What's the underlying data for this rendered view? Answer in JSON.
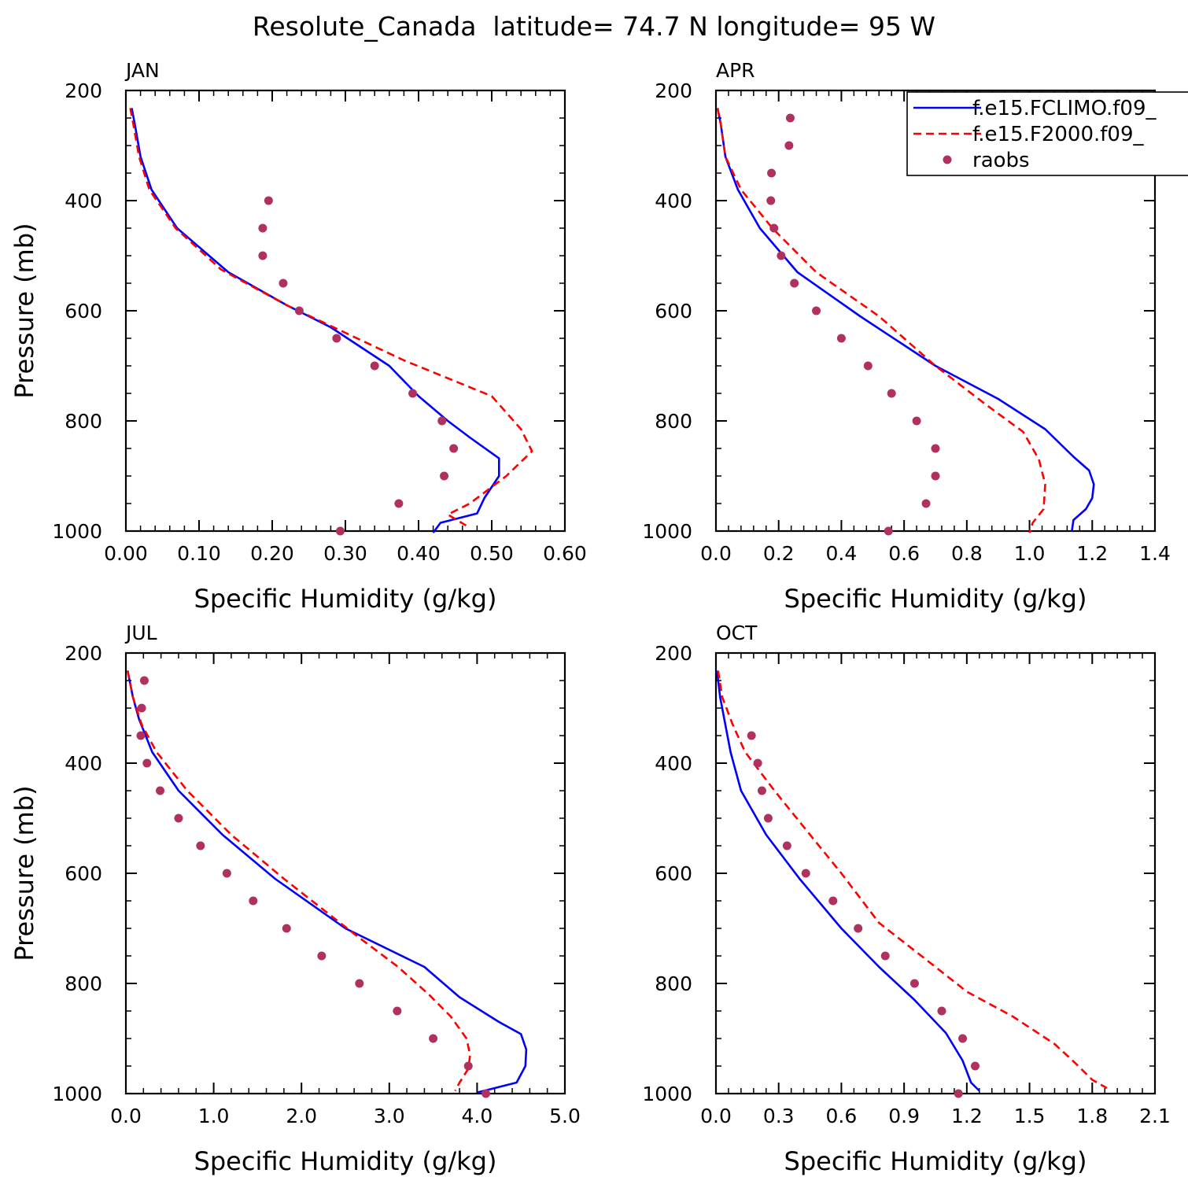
{
  "title": "Resolute_Canada  latitude= 74.7 N longitude= 95 W",
  "legend": {
    "placement": "top-right of APR panel",
    "entries": [
      {
        "label": "f.e15.FCLIMO.f09_",
        "color": "#0000ff",
        "style": "solid"
      },
      {
        "label": "f.e15.F2000.f09_",
        "color": "#ff0000",
        "style": "dashed"
      },
      {
        "label": "raobs",
        "color": "#b03060",
        "style": "dot"
      }
    ]
  },
  "chart_data": [
    {
      "type": "line",
      "panel_label": "JAN",
      "xlabel": "Specific Humidity (g/kg)",
      "ylabel": "Pressure (mb)",
      "xlim": [
        0,
        0.6
      ],
      "ylim": [
        200,
        1000
      ],
      "y_inverted": true,
      "xticks": [
        "0.00",
        "0.10",
        "0.20",
        "0.30",
        "0.40",
        "0.50",
        "0.60"
      ],
      "xtick_values": [
        0,
        0.1,
        0.2,
        0.3,
        0.4,
        0.5,
        0.6
      ],
      "yticks": [
        "200",
        "400",
        "600",
        "800",
        "1000"
      ],
      "ytick_values": [
        200,
        400,
        600,
        800,
        1000
      ],
      "series": [
        {
          "name": "f.e15.FCLIMO.f09_",
          "color": "#0000ff",
          "style": "solid",
          "points": [
            [
              0.008,
              232
            ],
            [
              0.012,
              260
            ],
            [
              0.02,
              320
            ],
            [
              0.035,
              380
            ],
            [
              0.07,
              450
            ],
            [
              0.14,
              530
            ],
            [
              0.22,
              590
            ],
            [
              0.28,
              630
            ],
            [
              0.36,
              700
            ],
            [
              0.4,
              755
            ],
            [
              0.44,
              800
            ],
            [
              0.47,
              830
            ],
            [
              0.51,
              868
            ],
            [
              0.51,
              900
            ],
            [
              0.49,
              940
            ],
            [
              0.48,
              968
            ],
            [
              0.43,
              985
            ],
            [
              0.42,
              1003
            ]
          ]
        },
        {
          "name": "f.e15.F2000.f09_",
          "color": "#ff0000",
          "style": "dashed",
          "points": [
            [
              0.006,
              232
            ],
            [
              0.01,
              260
            ],
            [
              0.018,
              320
            ],
            [
              0.032,
              380
            ],
            [
              0.068,
              450
            ],
            [
              0.13,
              525
            ],
            [
              0.22,
              590
            ],
            [
              0.3,
              640
            ],
            [
              0.38,
              690
            ],
            [
              0.5,
              755
            ],
            [
              0.54,
              815
            ],
            [
              0.555,
              855
            ],
            [
              0.52,
              900
            ],
            [
              0.47,
              950
            ],
            [
              0.44,
              970
            ],
            [
              0.465,
              990
            ]
          ]
        },
        {
          "name": "raobs",
          "color": "#b03060",
          "style": "dot",
          "points": [
            [
              0.195,
              400
            ],
            [
              0.187,
              450
            ],
            [
              0.187,
              500
            ],
            [
              0.215,
              550
            ],
            [
              0.237,
              600
            ],
            [
              0.288,
              650
            ],
            [
              0.34,
              700
            ],
            [
              0.392,
              750
            ],
            [
              0.432,
              800
            ],
            [
              0.448,
              850
            ],
            [
              0.435,
              900
            ],
            [
              0.373,
              950
            ],
            [
              0.293,
              1000
            ]
          ]
        }
      ]
    },
    {
      "type": "line",
      "panel_label": "APR",
      "xlabel": "Specific Humidity (g/kg)",
      "ylabel": "",
      "xlim": [
        0,
        1.4
      ],
      "ylim": [
        200,
        1000
      ],
      "y_inverted": true,
      "xticks": [
        "0.0",
        "0.2",
        "0.4",
        "0.6",
        "0.8",
        "1.0",
        "1.2",
        "1.4"
      ],
      "xtick_values": [
        0,
        0.2,
        0.4,
        0.6,
        0.8,
        1.0,
        1.2,
        1.4
      ],
      "yticks": [
        "200",
        "400",
        "600",
        "800",
        "1000"
      ],
      "ytick_values": [
        200,
        400,
        600,
        800,
        1000
      ],
      "series": [
        {
          "name": "f.e15.FCLIMO.f09_",
          "color": "#0000ff",
          "style": "solid",
          "points": [
            [
              0.005,
              232
            ],
            [
              0.015,
              260
            ],
            [
              0.03,
              320
            ],
            [
              0.07,
              380
            ],
            [
              0.14,
              450
            ],
            [
              0.26,
              530
            ],
            [
              0.46,
              610
            ],
            [
              0.7,
              700
            ],
            [
              0.9,
              760
            ],
            [
              1.05,
              815
            ],
            [
              1.14,
              865
            ],
            [
              1.19,
              890
            ],
            [
              1.205,
              915
            ],
            [
              1.2,
              940
            ],
            [
              1.18,
              960
            ],
            [
              1.14,
              980
            ],
            [
              1.135,
              1000
            ]
          ]
        },
        {
          "name": "f.e15.F2000.f09_",
          "color": "#ff0000",
          "style": "dashed",
          "points": [
            [
              0.005,
              232
            ],
            [
              0.015,
              260
            ],
            [
              0.03,
              320
            ],
            [
              0.08,
              380
            ],
            [
              0.18,
              450
            ],
            [
              0.32,
              530
            ],
            [
              0.52,
              610
            ],
            [
              0.7,
              700
            ],
            [
              0.86,
              770
            ],
            [
              0.98,
              820
            ],
            [
              1.03,
              870
            ],
            [
              1.05,
              915
            ],
            [
              1.045,
              960
            ],
            [
              1.01,
              985
            ],
            [
              1.0,
              1003
            ]
          ]
        },
        {
          "name": "raobs",
          "color": "#b03060",
          "style": "dot",
          "points": [
            [
              0.237,
              250
            ],
            [
              0.233,
              300
            ],
            [
              0.177,
              350
            ],
            [
              0.175,
              400
            ],
            [
              0.185,
              450
            ],
            [
              0.208,
              500
            ],
            [
              0.25,
              550
            ],
            [
              0.32,
              600
            ],
            [
              0.4,
              650
            ],
            [
              0.485,
              700
            ],
            [
              0.56,
              750
            ],
            [
              0.64,
              800
            ],
            [
              0.7,
              850
            ],
            [
              0.7,
              900
            ],
            [
              0.67,
              950
            ],
            [
              0.55,
              1000
            ]
          ]
        }
      ]
    },
    {
      "type": "line",
      "panel_label": "JUL",
      "xlabel": "Specific Humidity (g/kg)",
      "ylabel": "Pressure (mb)",
      "xlim": [
        0,
        5.0
      ],
      "ylim": [
        200,
        1000
      ],
      "y_inverted": true,
      "xticks": [
        "0.0",
        "1.0",
        "2.0",
        "3.0",
        "4.0",
        "5.0"
      ],
      "xtick_values": [
        0,
        1,
        2,
        3,
        4,
        5
      ],
      "yticks": [
        "200",
        "400",
        "600",
        "800",
        "1000"
      ],
      "ytick_values": [
        200,
        400,
        600,
        800,
        1000
      ],
      "series": [
        {
          "name": "f.e15.FCLIMO.f09_",
          "color": "#0000ff",
          "style": "solid",
          "points": [
            [
              0.02,
              232
            ],
            [
              0.08,
              280
            ],
            [
              0.15,
              320
            ],
            [
              0.3,
              380
            ],
            [
              0.6,
              450
            ],
            [
              1.1,
              530
            ],
            [
              1.7,
              610
            ],
            [
              2.5,
              700
            ],
            [
              3.4,
              770
            ],
            [
              3.8,
              825
            ],
            [
              4.25,
              870
            ],
            [
              4.5,
              892
            ],
            [
              4.56,
              920
            ],
            [
              4.55,
              950
            ],
            [
              4.45,
              980
            ],
            [
              4.0,
              998
            ]
          ]
        },
        {
          "name": "f.e15.F2000.f09_",
          "color": "#ff0000",
          "style": "dashed",
          "points": [
            [
              0.02,
              232
            ],
            [
              0.08,
              280
            ],
            [
              0.18,
              330
            ],
            [
              0.35,
              380
            ],
            [
              0.7,
              450
            ],
            [
              1.2,
              530
            ],
            [
              1.8,
              610
            ],
            [
              2.6,
              710
            ],
            [
              3.1,
              770
            ],
            [
              3.45,
              820
            ],
            [
              3.7,
              860
            ],
            [
              3.88,
              900
            ],
            [
              3.92,
              930
            ],
            [
              3.9,
              955
            ],
            [
              3.8,
              980
            ],
            [
              3.75,
              995
            ]
          ]
        },
        {
          "name": "raobs",
          "color": "#b03060",
          "style": "dot",
          "points": [
            [
              0.21,
              250
            ],
            [
              0.18,
              300
            ],
            [
              0.17,
              350
            ],
            [
              0.24,
              400
            ],
            [
              0.39,
              450
            ],
            [
              0.6,
              500
            ],
            [
              0.85,
              550
            ],
            [
              1.15,
              600
            ],
            [
              1.45,
              650
            ],
            [
              1.83,
              700
            ],
            [
              2.23,
              750
            ],
            [
              2.66,
              800
            ],
            [
              3.09,
              850
            ],
            [
              3.5,
              900
            ],
            [
              3.9,
              950
            ],
            [
              4.1,
              1000
            ]
          ]
        }
      ]
    },
    {
      "type": "line",
      "panel_label": "OCT",
      "xlabel": "Specific Humidity (g/kg)",
      "ylabel": "",
      "xlim": [
        0,
        2.1
      ],
      "ylim": [
        200,
        1000
      ],
      "y_inverted": true,
      "xticks": [
        "0.0",
        "0.3",
        "0.6",
        "0.9",
        "1.2",
        "1.5",
        "1.8",
        "2.1"
      ],
      "xtick_values": [
        0,
        0.3,
        0.6,
        0.9,
        1.2,
        1.5,
        1.8,
        2.1
      ],
      "yticks": [
        "200",
        "400",
        "600",
        "800",
        "1000"
      ],
      "ytick_values": [
        200,
        400,
        600,
        800,
        1000
      ],
      "series": [
        {
          "name": "f.e15.FCLIMO.f09_",
          "color": "#0000ff",
          "style": "solid",
          "points": [
            [
              0.005,
              232
            ],
            [
              0.02,
              280
            ],
            [
              0.04,
              320
            ],
            [
              0.07,
              380
            ],
            [
              0.12,
              450
            ],
            [
              0.24,
              530
            ],
            [
              0.4,
              610
            ],
            [
              0.6,
              700
            ],
            [
              0.78,
              770
            ],
            [
              0.95,
              830
            ],
            [
              1.1,
              890
            ],
            [
              1.18,
              940
            ],
            [
              1.22,
              980
            ],
            [
              1.26,
              995
            ]
          ]
        },
        {
          "name": "f.e15.F2000.f09_",
          "color": "#ff0000",
          "style": "dashed",
          "points": [
            [
              0.01,
              232
            ],
            [
              0.03,
              280
            ],
            [
              0.08,
              330
            ],
            [
              0.14,
              380
            ],
            [
              0.28,
              450
            ],
            [
              0.45,
              530
            ],
            [
              0.6,
              600
            ],
            [
              0.78,
              690
            ],
            [
              1.05,
              770
            ],
            [
              1.2,
              815
            ],
            [
              1.42,
              860
            ],
            [
              1.62,
              910
            ],
            [
              1.72,
              945
            ],
            [
              1.8,
              975
            ],
            [
              1.87,
              990
            ]
          ]
        },
        {
          "name": "raobs",
          "color": "#b03060",
          "style": "dot",
          "points": [
            [
              0.17,
              350
            ],
            [
              0.2,
              400
            ],
            [
              0.22,
              450
            ],
            [
              0.25,
              500
            ],
            [
              0.34,
              550
            ],
            [
              0.43,
              600
            ],
            [
              0.56,
              650
            ],
            [
              0.68,
              700
            ],
            [
              0.81,
              750
            ],
            [
              0.95,
              800
            ],
            [
              1.08,
              850
            ],
            [
              1.18,
              900
            ],
            [
              1.24,
              950
            ],
            [
              1.16,
              1000
            ]
          ]
        }
      ]
    }
  ]
}
